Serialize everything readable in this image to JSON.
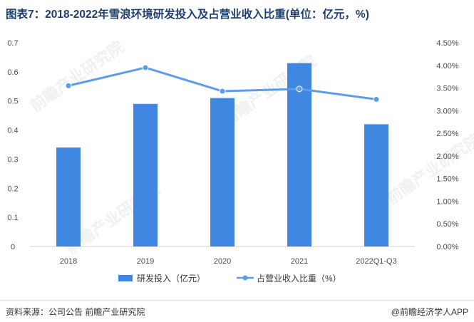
{
  "title": "图表7：2018-2022年雪浪环境研发投入及占营业收入比重(单位：亿元，%)",
  "source": "资料来源：公司公告 前瞻产业研究院",
  "credit": "@前瞻经济学人APP",
  "watermark": "前瞻产业研究院",
  "colors": {
    "bar": "#3f87e0",
    "line": "#5b9de6",
    "title": "#1f3e6e"
  },
  "chart_data": {
    "type": "bar",
    "categories": [
      "2018",
      "2019",
      "2020",
      "2021",
      "2022Q1-Q3"
    ],
    "series": [
      {
        "name": "研发投入（亿元）",
        "type": "bar",
        "axis": "left",
        "values": [
          0.34,
          0.49,
          0.51,
          0.63,
          0.42
        ]
      },
      {
        "name": "占营业收入比重（%）",
        "type": "line",
        "axis": "right",
        "values": [
          3.55,
          3.95,
          3.43,
          3.48,
          3.25
        ]
      }
    ],
    "y_left": {
      "min": 0,
      "max": 0.7,
      "ticks": [
        "0",
        "0.1",
        "0.2",
        "0.3",
        "0.4",
        "0.5",
        "0.6",
        "0.7"
      ]
    },
    "y_right": {
      "min": 0,
      "max": 4.5,
      "ticks": [
        "0.00%",
        "0.50%",
        "1.00%",
        "1.50%",
        "2.00%",
        "2.50%",
        "3.00%",
        "3.50%",
        "4.00%",
        "4.50%"
      ]
    },
    "grid": false,
    "legend": "bottom"
  }
}
